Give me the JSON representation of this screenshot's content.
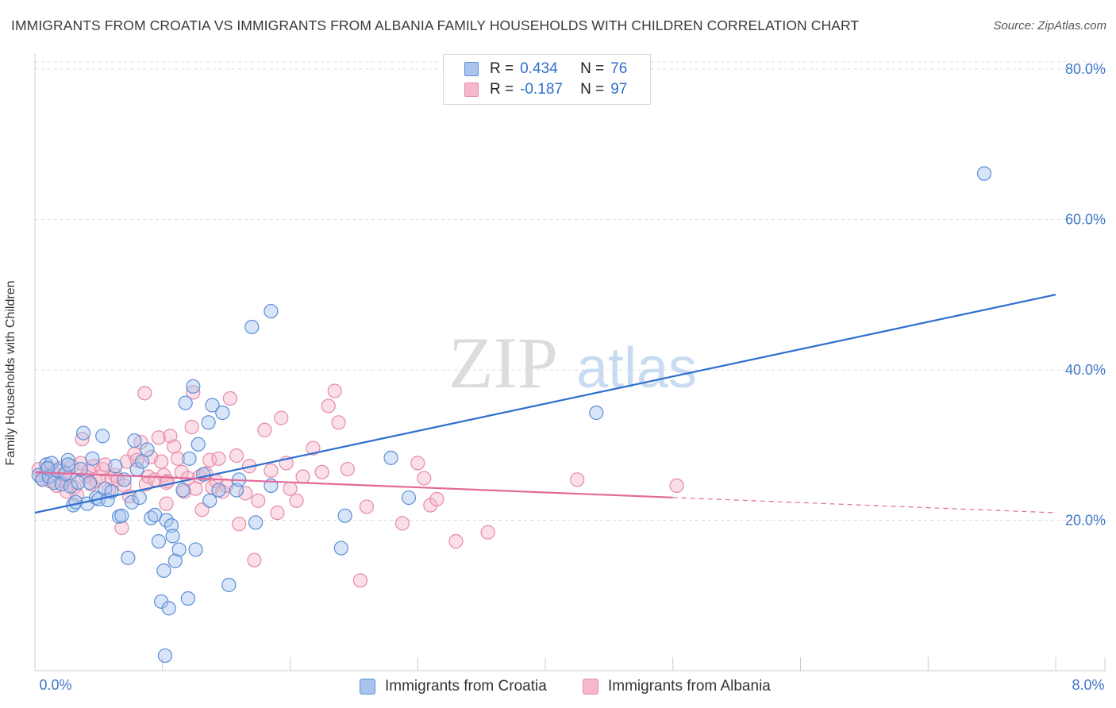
{
  "title": "IMMIGRANTS FROM CROATIA VS IMMIGRANTS FROM ALBANIA FAMILY HOUSEHOLDS WITH CHILDREN CORRELATION CHART",
  "source": "Source: ZipAtlas.com",
  "watermark": {
    "zip": "ZIP",
    "atlas": "atlas"
  },
  "legend": {
    "r_label": "R =",
    "n_label": "N =",
    "croatia": {
      "r": "0.434",
      "n": "76"
    },
    "albania": {
      "r": "-0.187",
      "n": "97"
    }
  },
  "colors": {
    "croatia_fill": "#a9c4ee",
    "croatia_stroke": "#5b8fd6",
    "croatia_line": "#2d6fcf",
    "albania_fill": "#f6b8cb",
    "albania_stroke": "#e58aa6",
    "albania_line": "#e2699a",
    "tick_label": "#3f76c9"
  },
  "chart_data": {
    "type": "scatter",
    "title": "IMMIGRANTS FROM CROATIA VS IMMIGRANTS FROM ALBANIA FAMILY HOUSEHOLDS WITH CHILDREN CORRELATION CHART",
    "xlabel": "",
    "ylabel": "Family Households with Children",
    "xlim": [
      0,
      8
    ],
    "ylim": [
      0,
      82
    ],
    "x_ticks": [
      {
        "value": 0,
        "label": "0.0%"
      },
      {
        "value": 8,
        "label": "8.0%"
      }
    ],
    "y_ticks": [
      {
        "value": 20,
        "label": "20.0%"
      },
      {
        "value": 40,
        "label": "40.0%"
      },
      {
        "value": 60,
        "label": "60.0%"
      },
      {
        "value": 80,
        "label": "80.0%"
      }
    ],
    "series": [
      {
        "name": "Immigrants from Croatia",
        "r": 0.434,
        "n": 76,
        "trend": {
          "x": [
            0,
            8
          ],
          "y": [
            21.0,
            50.0
          ],
          "dashed_from": null
        },
        "points": [
          [
            0.03,
            26.0
          ],
          [
            0.06,
            25.4
          ],
          [
            0.09,
            27.4
          ],
          [
            0.11,
            25.8
          ],
          [
            0.13,
            27.6
          ],
          [
            0.15,
            25.0
          ],
          [
            0.18,
            26.6
          ],
          [
            0.21,
            24.8
          ],
          [
            0.24,
            26.2
          ],
          [
            0.26,
            28.0
          ],
          [
            0.28,
            24.5
          ],
          [
            0.3,
            22.0
          ],
          [
            0.32,
            22.4
          ],
          [
            0.34,
            25.0
          ],
          [
            0.36,
            26.8
          ],
          [
            0.38,
            31.6
          ],
          [
            0.41,
            22.2
          ],
          [
            0.43,
            25.0
          ],
          [
            0.45,
            28.2
          ],
          [
            0.48,
            23.0
          ],
          [
            0.5,
            22.8
          ],
          [
            0.53,
            31.2
          ],
          [
            0.55,
            24.2
          ],
          [
            0.57,
            22.7
          ],
          [
            0.6,
            23.8
          ],
          [
            0.63,
            27.2
          ],
          [
            0.66,
            20.5
          ],
          [
            0.68,
            20.6
          ],
          [
            0.7,
            25.4
          ],
          [
            0.73,
            15.0
          ],
          [
            0.76,
            22.4
          ],
          [
            0.78,
            30.6
          ],
          [
            0.8,
            26.8
          ],
          [
            0.82,
            23.0
          ],
          [
            0.84,
            27.8
          ],
          [
            0.88,
            29.4
          ],
          [
            0.91,
            20.3
          ],
          [
            0.94,
            20.7
          ],
          [
            0.97,
            17.2
          ],
          [
            0.99,
            9.2
          ],
          [
            1.01,
            13.3
          ],
          [
            1.03,
            20.0
          ],
          [
            1.05,
            8.3
          ],
          [
            1.07,
            19.3
          ],
          [
            1.08,
            17.9
          ],
          [
            1.1,
            14.6
          ],
          [
            1.13,
            16.1
          ],
          [
            1.16,
            24.0
          ],
          [
            1.18,
            35.6
          ],
          [
            1.21,
            28.2
          ],
          [
            1.24,
            37.8
          ],
          [
            1.26,
            16.1
          ],
          [
            1.28,
            30.1
          ],
          [
            1.32,
            26.1
          ],
          [
            1.36,
            33.0
          ],
          [
            1.37,
            22.6
          ],
          [
            1.39,
            35.3
          ],
          [
            1.44,
            24.0
          ],
          [
            1.47,
            34.3
          ],
          [
            1.52,
            11.4
          ],
          [
            1.58,
            24.0
          ],
          [
            1.6,
            25.4
          ],
          [
            1.7,
            45.7
          ],
          [
            1.73,
            19.7
          ],
          [
            1.85,
            47.8
          ],
          [
            1.85,
            24.6
          ],
          [
            2.43,
            20.6
          ],
          [
            2.4,
            16.3
          ],
          [
            2.79,
            28.3
          ],
          [
            2.93,
            23.0
          ],
          [
            4.4,
            34.3
          ],
          [
            7.44,
            66.1
          ],
          [
            1.02,
            2.0
          ],
          [
            1.2,
            9.6
          ],
          [
            0.26,
            27.4
          ],
          [
            0.1,
            26.9
          ]
        ]
      },
      {
        "name": "Immigrants from Albania",
        "r": -0.187,
        "n": 97,
        "trend": {
          "x": [
            0,
            8
          ],
          "y": [
            26.4,
            21.0
          ],
          "dashed_from": 5.0
        },
        "points": [
          [
            0.03,
            26.8
          ],
          [
            0.05,
            25.6
          ],
          [
            0.08,
            26.2
          ],
          [
            0.1,
            27.0
          ],
          [
            0.12,
            25.2
          ],
          [
            0.14,
            26.4
          ],
          [
            0.17,
            24.6
          ],
          [
            0.19,
            26.9
          ],
          [
            0.22,
            25.2
          ],
          [
            0.25,
            23.8
          ],
          [
            0.27,
            25.8
          ],
          [
            0.29,
            27.2
          ],
          [
            0.31,
            24.4
          ],
          [
            0.33,
            23.4
          ],
          [
            0.36,
            27.6
          ],
          [
            0.37,
            30.8
          ],
          [
            0.4,
            25.8
          ],
          [
            0.42,
            26.6
          ],
          [
            0.44,
            24.8
          ],
          [
            0.46,
            27.2
          ],
          [
            0.48,
            25.2
          ],
          [
            0.51,
            25.8
          ],
          [
            0.53,
            26.8
          ],
          [
            0.55,
            27.4
          ],
          [
            0.58,
            24.0
          ],
          [
            0.6,
            25.6
          ],
          [
            0.63,
            26.0
          ],
          [
            0.65,
            25.4
          ],
          [
            0.68,
            19.0
          ],
          [
            0.7,
            24.6
          ],
          [
            0.72,
            27.8
          ],
          [
            0.74,
            23.2
          ],
          [
            0.78,
            28.8
          ],
          [
            0.8,
            28.0
          ],
          [
            0.83,
            30.4
          ],
          [
            0.86,
            36.9
          ],
          [
            0.87,
            24.8
          ],
          [
            0.89,
            25.8
          ],
          [
            0.91,
            28.4
          ],
          [
            0.94,
            25.4
          ],
          [
            0.97,
            31.0
          ],
          [
            0.99,
            27.8
          ],
          [
            1.01,
            26.0
          ],
          [
            1.03,
            22.2
          ],
          [
            1.04,
            25.2
          ],
          [
            1.06,
            31.2
          ],
          [
            1.09,
            29.8
          ],
          [
            1.12,
            28.2
          ],
          [
            1.15,
            26.4
          ],
          [
            1.17,
            23.8
          ],
          [
            1.2,
            25.6
          ],
          [
            1.23,
            32.4
          ],
          [
            1.24,
            37.0
          ],
          [
            1.26,
            24.2
          ],
          [
            1.29,
            25.8
          ],
          [
            1.31,
            21.4
          ],
          [
            1.34,
            26.2
          ],
          [
            1.37,
            28.0
          ],
          [
            1.39,
            24.4
          ],
          [
            1.42,
            25.2
          ],
          [
            1.44,
            28.2
          ],
          [
            1.47,
            23.8
          ],
          [
            1.5,
            24.6
          ],
          [
            1.53,
            36.2
          ],
          [
            1.58,
            28.6
          ],
          [
            1.6,
            19.5
          ],
          [
            1.65,
            23.6
          ],
          [
            1.68,
            27.2
          ],
          [
            1.72,
            14.7
          ],
          [
            1.75,
            22.6
          ],
          [
            1.8,
            32.0
          ],
          [
            1.85,
            26.6
          ],
          [
            1.9,
            21.0
          ],
          [
            1.93,
            33.6
          ],
          [
            1.97,
            27.6
          ],
          [
            2.0,
            24.2
          ],
          [
            2.05,
            22.6
          ],
          [
            2.1,
            25.8
          ],
          [
            2.18,
            29.6
          ],
          [
            2.25,
            26.4
          ],
          [
            2.3,
            35.2
          ],
          [
            2.35,
            37.2
          ],
          [
            2.38,
            33.0
          ],
          [
            2.45,
            26.8
          ],
          [
            2.55,
            12.0
          ],
          [
            2.6,
            21.8
          ],
          [
            2.88,
            19.6
          ],
          [
            3.0,
            27.6
          ],
          [
            3.05,
            25.6
          ],
          [
            3.1,
            22.0
          ],
          [
            3.15,
            22.8
          ],
          [
            3.3,
            17.2
          ],
          [
            3.55,
            18.4
          ],
          [
            4.25,
            25.4
          ],
          [
            5.03,
            24.6
          ],
          [
            1.03,
            25.0
          ],
          [
            0.23,
            26.1
          ]
        ]
      }
    ]
  },
  "bottom_legend": {
    "croatia_label": "Immigrants from Croatia",
    "albania_label": "Immigrants from Albania"
  }
}
